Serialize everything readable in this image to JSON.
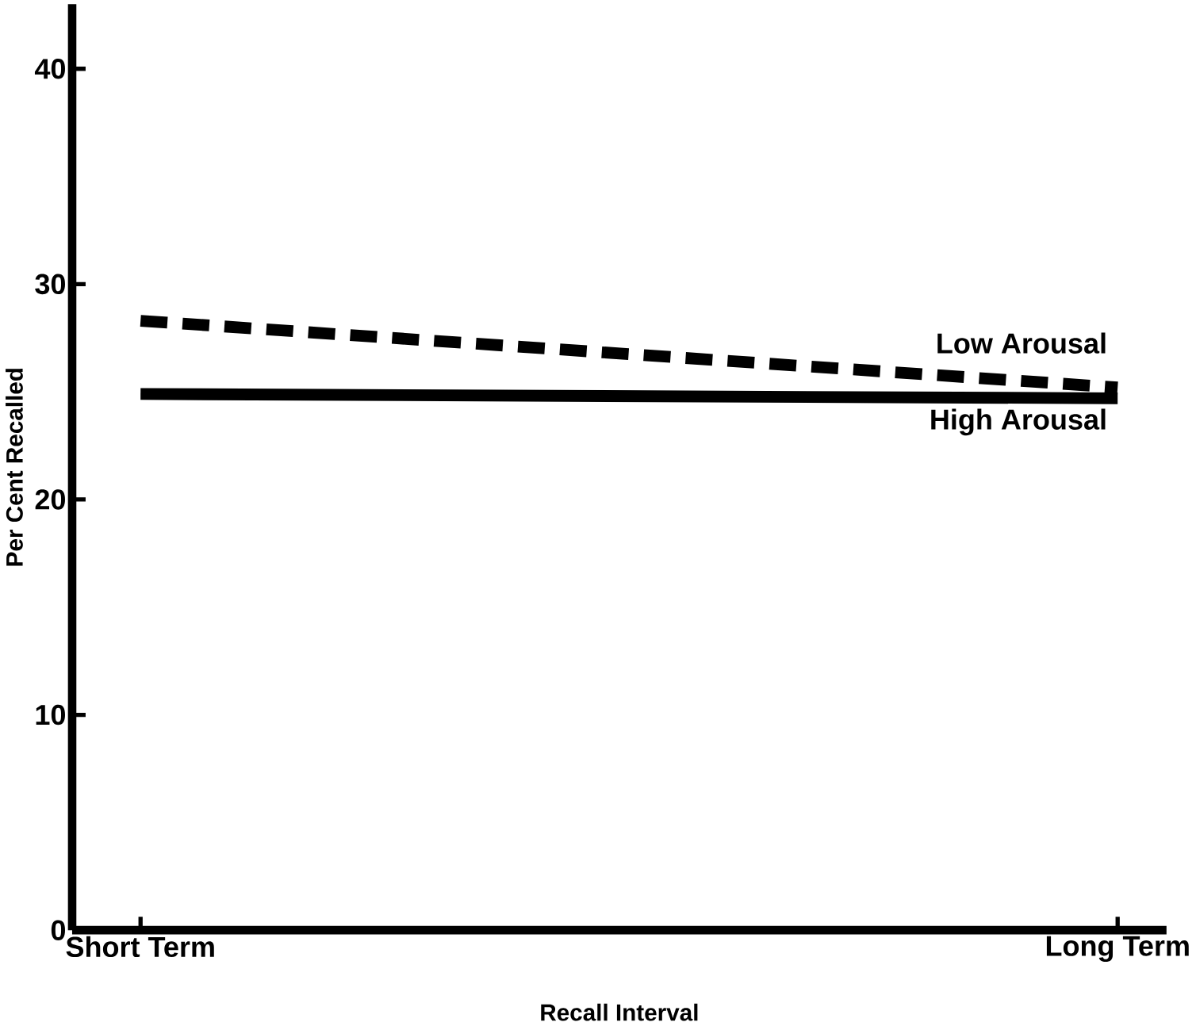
{
  "chart_data": {
    "type": "line",
    "xlabel": "Recall Interval",
    "ylabel": "Per Cent Recalled",
    "categories": [
      "Short Term",
      "Long Term"
    ],
    "series": [
      {
        "name": "Low Arousal",
        "color": "#000000",
        "line_style": "dashed",
        "values": [
          28.3,
          25.2
        ]
      },
      {
        "name": "High Arousal",
        "color": "#000000",
        "line_style": "solid",
        "values": [
          24.9,
          24.7
        ]
      }
    ],
    "ylim": [
      0,
      43
    ],
    "yticks": [
      0,
      10,
      20,
      30,
      40
    ],
    "grid": false,
    "legend": false,
    "marker": "none"
  }
}
